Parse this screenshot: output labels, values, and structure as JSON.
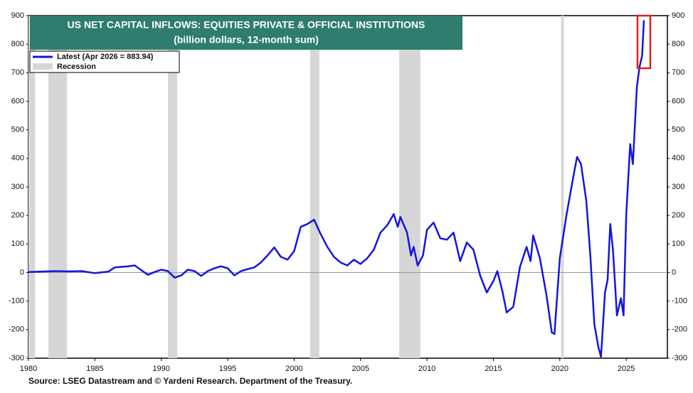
{
  "chart_data": {
    "type": "line",
    "title": "US NET CAPITAL INFLOWS: EQUITIES PRIVATE & OFFICIAL INSTITUTIONS",
    "subtitle": "(billion dollars, 12-month sum)",
    "source": "Source: LSEG Datastream and © Yardeni Research. Department of the Treasury.",
    "xlim": [
      1980,
      2028.1
    ],
    "xticks": [
      1980,
      1985,
      1990,
      1995,
      2000,
      2005,
      2010,
      2015,
      2020,
      2025
    ],
    "ylim": [
      -300,
      900
    ],
    "yticks": [
      -300,
      -200,
      -100,
      0,
      100,
      200,
      300,
      400,
      500,
      600,
      700,
      800,
      900
    ],
    "recession_label": "Recession",
    "recession_color": "#d6d6d6",
    "recessions": [
      [
        1980.0,
        1980.5
      ],
      [
        1981.5,
        1982.9
      ],
      [
        1990.5,
        1991.2
      ],
      [
        2001.2,
        2001.9
      ],
      [
        2007.9,
        2009.5
      ],
      [
        2020.1,
        2020.3
      ]
    ],
    "series": [
      {
        "name": "Latest (Apr 2026 = 883.94)",
        "color": "#1414e0",
        "x": [
          1980,
          1982,
          1983,
          1984,
          1985,
          1986,
          1986.5,
          1987.5,
          1988,
          1988.5,
          1989,
          1989.5,
          1990,
          1990.5,
          1991,
          1991.5,
          1992,
          1992.5,
          1993,
          1993.5,
          1994,
          1994.5,
          1995,
          1995.5,
          1996,
          1996.5,
          1997,
          1997.5,
          1998,
          1998.5,
          1999,
          1999.5,
          2000,
          2000.5,
          2001,
          2001.5,
          2002,
          2002.5,
          2003,
          2003.5,
          2004,
          2004.5,
          2005,
          2005.5,
          2006,
          2006.5,
          2007,
          2007.5,
          2007.8,
          2008,
          2008.5,
          2008.8,
          2009,
          2009.3,
          2009.7,
          2010,
          2010.5,
          2011,
          2011.5,
          2012,
          2012.5,
          2013,
          2013.5,
          2014,
          2014.5,
          2015,
          2015.3,
          2015.7,
          2016,
          2016.5,
          2017,
          2017.5,
          2017.8,
          2018,
          2018.5,
          2019,
          2019.4,
          2019.6,
          2020,
          2020.5,
          2021,
          2021.3,
          2021.6,
          2022,
          2022.3,
          2022.6,
          2022.9,
          2023.1,
          2023.4,
          2023.6,
          2023.8,
          2024,
          2024.3,
          2024.6,
          2024.8,
          2025,
          2025.3,
          2025.5,
          2025.8,
          2026,
          2026.2,
          2026.33
        ],
        "values": [
          2,
          5,
          4,
          5,
          -2,
          3,
          18,
          22,
          25,
          8,
          -8,
          2,
          10,
          5,
          -18,
          -10,
          10,
          5,
          -12,
          5,
          15,
          22,
          15,
          -10,
          5,
          12,
          18,
          35,
          60,
          88,
          55,
          45,
          75,
          160,
          170,
          185,
          135,
          90,
          55,
          35,
          25,
          45,
          30,
          50,
          80,
          140,
          165,
          205,
          160,
          195,
          140,
          60,
          90,
          25,
          60,
          150,
          175,
          120,
          115,
          140,
          40,
          105,
          80,
          -10,
          -70,
          -30,
          5,
          -70,
          -140,
          -120,
          20,
          90,
          40,
          130,
          50,
          -80,
          -210,
          -215,
          50,
          200,
          330,
          405,
          380,
          250,
          60,
          -180,
          -260,
          -295,
          -70,
          -25,
          170,
          80,
          -150,
          -90,
          -150,
          200,
          450,
          380,
          650,
          720,
          760,
          883.94
        ]
      }
    ]
  }
}
